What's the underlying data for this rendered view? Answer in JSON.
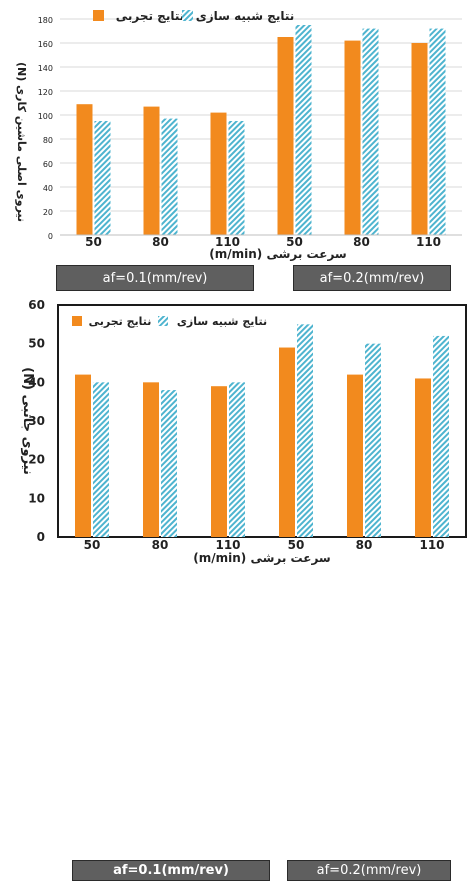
{
  "colors": {
    "experimental": "#f28a1e",
    "simulation": "#4eb4cf",
    "group_box": "#5f5f5f"
  },
  "chart_data": [
    {
      "type": "bar",
      "categories": [
        "50",
        "80",
        "110",
        "50",
        "80",
        "110"
      ],
      "series": [
        {
          "name": "نتایج تجربی",
          "values": [
            109,
            107,
            102,
            165,
            162,
            160
          ]
        },
        {
          "name": "نتایج شبیه سازی",
          "values": [
            95,
            97,
            95,
            175,
            172,
            172
          ]
        }
      ],
      "ylabel": "نیروی اصلی ماشین کاری (N)",
      "xlabel": "سرعت برشی (m/min)",
      "yticks": [
        0,
        20,
        40,
        60,
        80,
        100,
        120,
        140,
        160,
        180
      ],
      "ylim": [
        0,
        180
      ],
      "group_labels": [
        "af=0.1(mm/rev)",
        "af=0.2(mm/rev)"
      ],
      "legend": "top"
    },
    {
      "type": "bar",
      "categories": [
        "50",
        "80",
        "110",
        "50",
        "80",
        "110"
      ],
      "series": [
        {
          "name": "نتایج تجربی",
          "values": [
            42,
            40,
            39,
            49,
            42,
            41
          ]
        },
        {
          "name": "نتایج شبیه سازی",
          "values": [
            40,
            38,
            40,
            55,
            50,
            52
          ]
        }
      ],
      "ylabel": "نیروی جانبی (N)",
      "xlabel": "سرعت برشی (m/min)",
      "yticks": [
        0,
        10,
        20,
        30,
        40,
        50,
        60
      ],
      "ylim": [
        0,
        60
      ],
      "group_labels": [
        "af=0.1(mm/rev)",
        "af=0.2(mm/rev)"
      ],
      "legend": "top"
    }
  ]
}
